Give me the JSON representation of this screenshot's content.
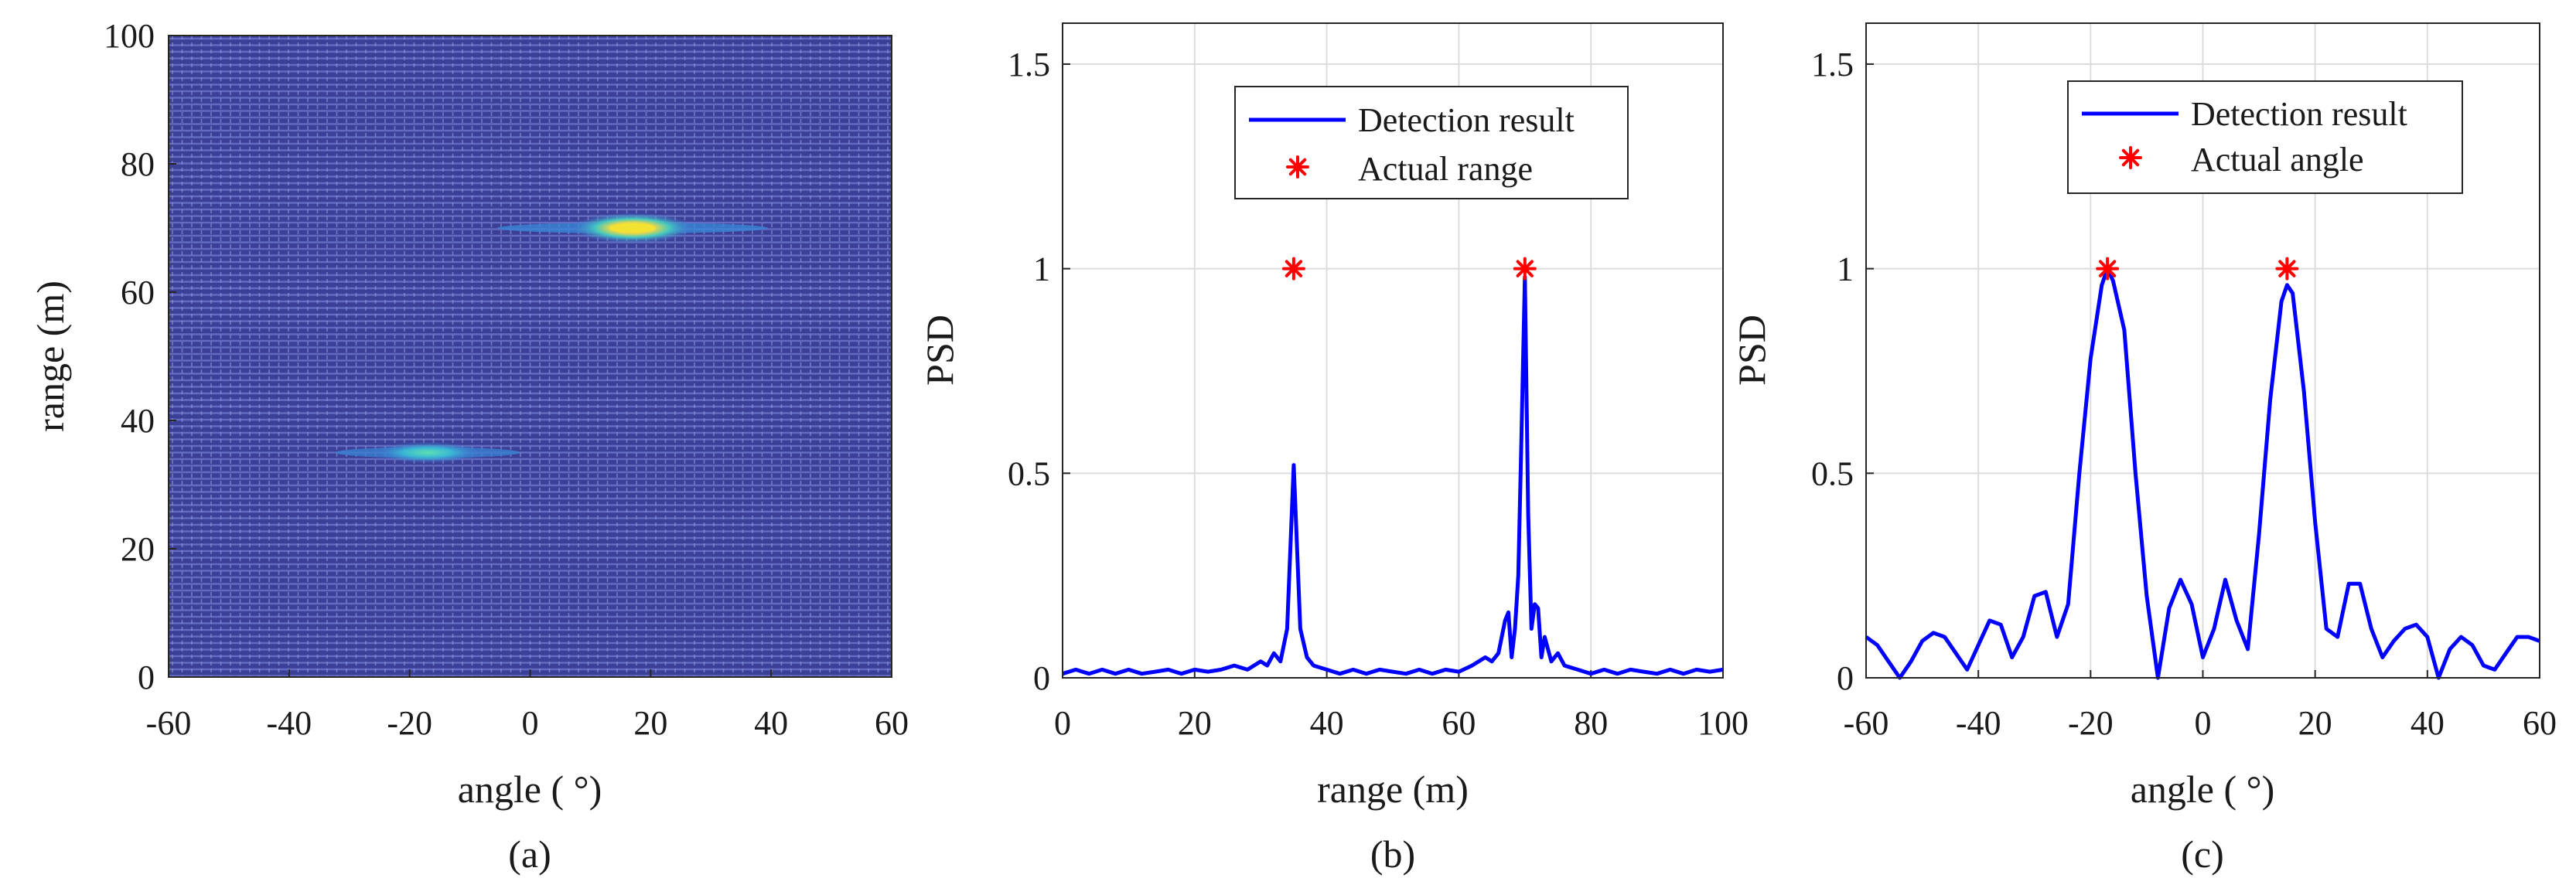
{
  "chart_data": [
    {
      "type": "heatmap",
      "caption": "(a)",
      "xlabel": "angle ( °)",
      "ylabel": "range (m)",
      "xlim": [
        -60,
        60
      ],
      "ylim": [
        0,
        100
      ],
      "xticks": [
        -60,
        -40,
        -20,
        0,
        20,
        40,
        60
      ],
      "yticks": [
        0,
        20,
        40,
        60,
        80,
        100
      ],
      "background_color": "#3b3f98",
      "line_color": "#6a73c8",
      "hotspots": [
        {
          "angle": 17,
          "range": 70,
          "intensity": 1.0
        },
        {
          "angle": -17,
          "range": 35,
          "intensity": 0.55
        }
      ]
    },
    {
      "type": "line",
      "caption": "(b)",
      "xlabel": "range (m)",
      "ylabel": "PSD",
      "xlim": [
        0,
        100
      ],
      "ylim": [
        0,
        1.6
      ],
      "xticks": [
        0,
        20,
        40,
        60,
        80,
        100
      ],
      "yticks": [
        0,
        0.5,
        1,
        1.5
      ],
      "grid": true,
      "legend_position": "top-right",
      "series": [
        {
          "name": "Detection result",
          "color": "#0000ff",
          "x": [
            0,
            2,
            4,
            6,
            8,
            10,
            12,
            14,
            16,
            18,
            20,
            22,
            24,
            26,
            28,
            30,
            31,
            32,
            33,
            34,
            35,
            36,
            37,
            38,
            40,
            42,
            44,
            46,
            48,
            50,
            52,
            54,
            56,
            58,
            60,
            62,
            64,
            65,
            66,
            67,
            67.5,
            68,
            68.5,
            69,
            69.5,
            70,
            70.5,
            71,
            71.5,
            72,
            72.5,
            73,
            74,
            75,
            76,
            78,
            80,
            82,
            84,
            86,
            88,
            90,
            92,
            94,
            96,
            98,
            100
          ],
          "y": [
            0.01,
            0.02,
            0.01,
            0.02,
            0.01,
            0.02,
            0.01,
            0.015,
            0.02,
            0.01,
            0.02,
            0.015,
            0.02,
            0.03,
            0.02,
            0.04,
            0.03,
            0.06,
            0.04,
            0.12,
            0.52,
            0.12,
            0.05,
            0.03,
            0.02,
            0.01,
            0.02,
            0.01,
            0.02,
            0.015,
            0.01,
            0.02,
            0.01,
            0.02,
            0.015,
            0.03,
            0.05,
            0.04,
            0.06,
            0.14,
            0.16,
            0.05,
            0.12,
            0.25,
            0.6,
            0.98,
            0.4,
            0.12,
            0.18,
            0.17,
            0.05,
            0.1,
            0.04,
            0.06,
            0.03,
            0.02,
            0.01,
            0.02,
            0.01,
            0.02,
            0.015,
            0.01,
            0.02,
            0.01,
            0.02,
            0.015,
            0.02
          ]
        },
        {
          "name": "Actual range",
          "color": "#ff0000",
          "marker": "asterisk",
          "x": [
            35,
            70
          ],
          "y": [
            1,
            1
          ]
        }
      ]
    },
    {
      "type": "line",
      "caption": "(c)",
      "xlabel": "angle ( °)",
      "ylabel": "PSD",
      "xlim": [
        -60,
        60
      ],
      "ylim": [
        0,
        1.6
      ],
      "xticks": [
        -60,
        -40,
        -20,
        0,
        20,
        40,
        60
      ],
      "yticks": [
        0,
        0.5,
        1,
        1.5
      ],
      "grid": true,
      "legend_position": "top-right",
      "series": [
        {
          "name": "Detection result",
          "color": "#0000ff",
          "x": [
            -60,
            -58,
            -56,
            -54,
            -52,
            -50,
            -48,
            -46,
            -44,
            -42,
            -40,
            -38,
            -36,
            -34,
            -32,
            -30,
            -28,
            -26,
            -24,
            -22,
            -20,
            -18,
            -17,
            -16,
            -14,
            -12,
            -10,
            -8,
            -6,
            -4,
            -2,
            0,
            2,
            4,
            6,
            8,
            10,
            12,
            14,
            15,
            16,
            18,
            20,
            22,
            24,
            26,
            28,
            30,
            32,
            34,
            36,
            38,
            40,
            42,
            44,
            46,
            48,
            50,
            52,
            54,
            56,
            58,
            60
          ],
          "y": [
            0.1,
            0.08,
            0.04,
            0.0,
            0.04,
            0.09,
            0.11,
            0.1,
            0.06,
            0.02,
            0.08,
            0.14,
            0.13,
            0.05,
            0.1,
            0.2,
            0.21,
            0.1,
            0.18,
            0.5,
            0.78,
            0.96,
            1.0,
            0.97,
            0.85,
            0.5,
            0.2,
            0.0,
            0.17,
            0.24,
            0.18,
            0.05,
            0.12,
            0.24,
            0.14,
            0.07,
            0.35,
            0.68,
            0.92,
            0.96,
            0.94,
            0.7,
            0.38,
            0.12,
            0.1,
            0.23,
            0.23,
            0.12,
            0.05,
            0.09,
            0.12,
            0.13,
            0.1,
            0.0,
            0.07,
            0.1,
            0.08,
            0.03,
            0.02,
            0.06,
            0.1,
            0.1,
            0.09
          ]
        },
        {
          "name": "Actual angle",
          "color": "#ff0000",
          "marker": "asterisk",
          "x": [
            -17,
            15
          ],
          "y": [
            1,
            1
          ]
        }
      ]
    }
  ]
}
